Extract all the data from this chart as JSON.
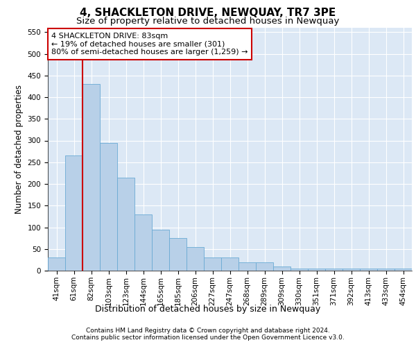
{
  "title": "4, SHACKLETON DRIVE, NEWQUAY, TR7 3PE",
  "subtitle": "Size of property relative to detached houses in Newquay",
  "xlabel": "Distribution of detached houses by size in Newquay",
  "ylabel": "Number of detached properties",
  "footnote1": "Contains HM Land Registry data © Crown copyright and database right 2024.",
  "footnote2": "Contains public sector information licensed under the Open Government Licence v3.0.",
  "categories": [
    "41sqm",
    "61sqm",
    "82sqm",
    "103sqm",
    "123sqm",
    "144sqm",
    "165sqm",
    "185sqm",
    "206sqm",
    "227sqm",
    "247sqm",
    "268sqm",
    "289sqm",
    "309sqm",
    "330sqm",
    "351sqm",
    "371sqm",
    "392sqm",
    "413sqm",
    "433sqm",
    "454sqm"
  ],
  "values": [
    30,
    265,
    430,
    295,
    215,
    130,
    95,
    75,
    55,
    30,
    30,
    20,
    20,
    10,
    5,
    5,
    5,
    5,
    5,
    5,
    5
  ],
  "bar_color": "#b8d0e8",
  "bar_edge_color": "#6aaad4",
  "background_color": "#dce8f5",
  "ylim": [
    0,
    560
  ],
  "yticks": [
    0,
    50,
    100,
    150,
    200,
    250,
    300,
    350,
    400,
    450,
    500,
    550
  ],
  "red_line_x": 1.5,
  "annotation_title": "4 SHACKLETON DRIVE: 83sqm",
  "annotation_line1": "← 19% of detached houses are smaller (301)",
  "annotation_line2": "80% of semi-detached houses are larger (1,259) →",
  "annotation_box_color": "#ffffff",
  "annotation_box_edge": "#cc0000",
  "red_line_color": "#cc0000",
  "title_fontsize": 11,
  "subtitle_fontsize": 9.5,
  "tick_fontsize": 7.5,
  "ylabel_fontsize": 8.5,
  "xlabel_fontsize": 9,
  "annotation_fontsize": 8,
  "footnote_fontsize": 6.5
}
